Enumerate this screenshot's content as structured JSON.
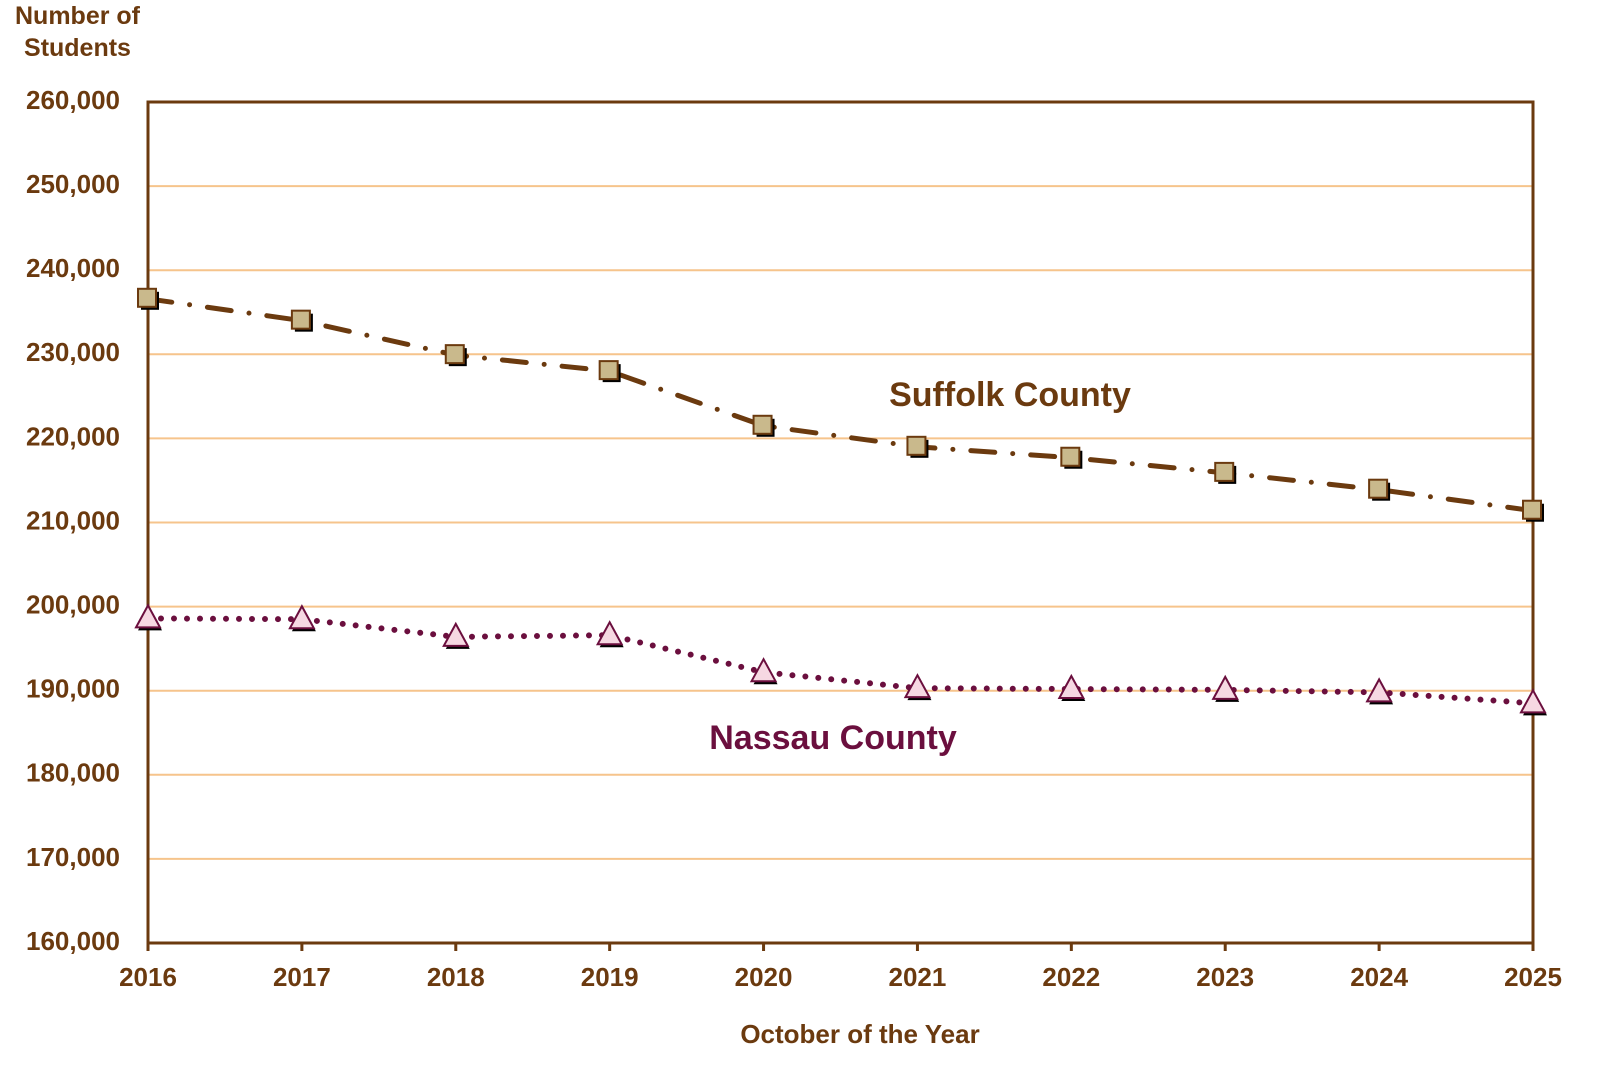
{
  "chart_data": {
    "type": "line",
    "y_label": "Number of Students",
    "x_label": "October of the Year",
    "x": [
      2016,
      2017,
      2018,
      2019,
      2020,
      2021,
      2022,
      2023,
      2024,
      2025
    ],
    "xlim": [
      2016,
      2025
    ],
    "xticks": [
      2016,
      2017,
      2018,
      2019,
      2020,
      2021,
      2022,
      2023,
      2024,
      2025
    ],
    "ylim": [
      160000,
      260000
    ],
    "yticks": [
      {
        "value": 160000,
        "label": "160,000"
      },
      {
        "value": 170000,
        "label": "170,000"
      },
      {
        "value": 180000,
        "label": "180,000"
      },
      {
        "value": 190000,
        "label": "190,000"
      },
      {
        "value": 200000,
        "label": "200,000"
      },
      {
        "value": 210000,
        "label": "210,000"
      },
      {
        "value": 220000,
        "label": "220,000"
      },
      {
        "value": 230000,
        "label": "230,000"
      },
      {
        "value": 240000,
        "label": "240,000"
      },
      {
        "value": 250000,
        "label": "250,000"
      },
      {
        "value": 260000,
        "label": "260,000"
      }
    ],
    "grid": true,
    "grid_color": "#f6c48c",
    "series": [
      {
        "name": "Suffolk County",
        "color": "#6b3a0f",
        "marker": "square",
        "marker_color": "#c9b98c",
        "dash": "dashdot",
        "values": [
          236600,
          234000,
          229900,
          228000,
          221500,
          219000,
          217700,
          215900,
          213900,
          211400
        ]
      },
      {
        "name": "Nassau County",
        "color": "#6b0f3e",
        "marker": "triangle",
        "marker_color": "#f6d8e2",
        "dash": "dot",
        "values": [
          198600,
          198500,
          196400,
          196600,
          192200,
          190300,
          190200,
          190100,
          189800,
          188500
        ]
      }
    ]
  }
}
